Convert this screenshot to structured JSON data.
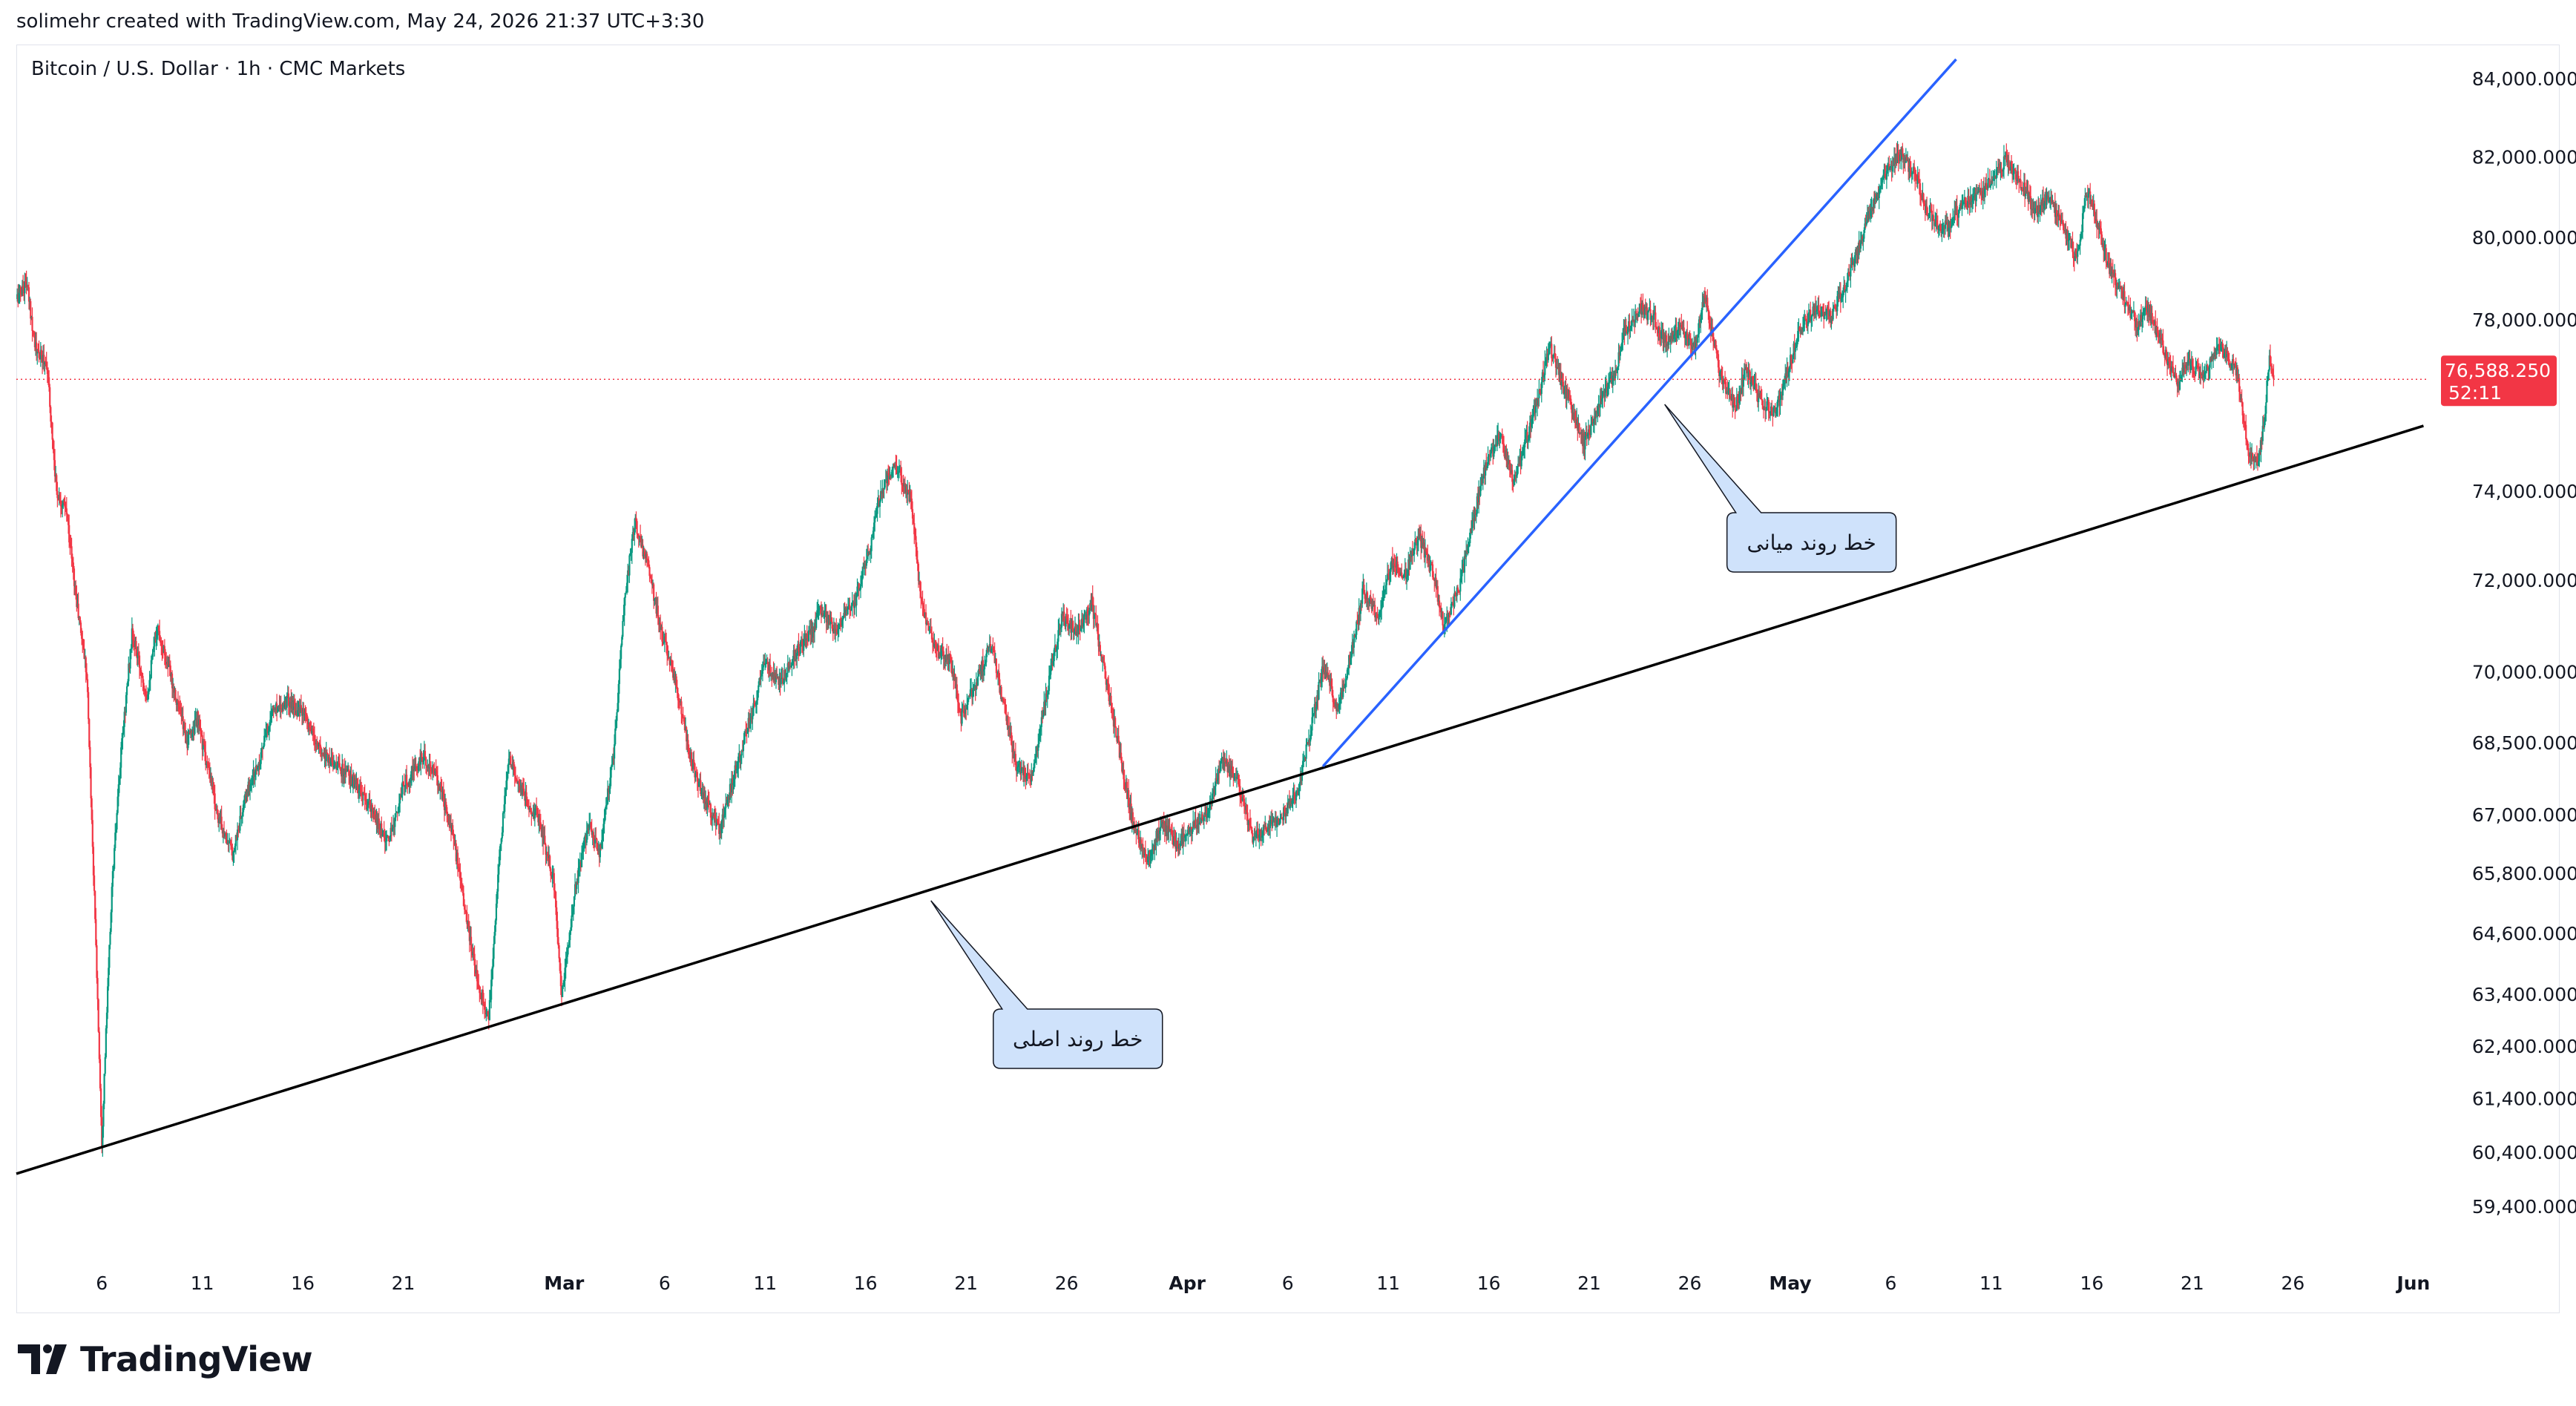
{
  "header": {
    "text": "solimehr created with TradingView.com, May 24, 2026 21:37 UTC+3:30"
  },
  "symbol": {
    "title": "Bitcoin / U.S. Dollar · 1h · CMC Markets"
  },
  "footer": {
    "logo_text": "TradingView"
  },
  "colors": {
    "up": "#089981",
    "down": "#f23645",
    "main_trend": "#000000",
    "mid_trend": "#2962ff",
    "callout_fill": "#cfe2fb",
    "price_tag": "#f23645"
  },
  "chart_data": {
    "type": "candlestick",
    "title": "Bitcoin / U.S. Dollar · 1h · CMC Markets",
    "xlabel": "",
    "ylabel": "",
    "price_scale": "log",
    "y_ticks": [
      84000,
      82000,
      80000,
      78000,
      74000,
      72000,
      70000,
      68500,
      67000,
      65800,
      64600,
      63400,
      62400,
      61400,
      60400,
      59400
    ],
    "y_tick_labels": [
      "84,000.000",
      "82,000.000",
      "80,000.000",
      "78,000.000",
      "74,000.000",
      "72,000.000",
      "70,000.000",
      "68,500.000",
      "67,000.000",
      "65,800.000",
      "64,600.000",
      "63,400.000",
      "62,400.000",
      "61,400.000",
      "60,400.000",
      "59,400.000"
    ],
    "x_range": [
      "2026-02-01T18:00",
      "2026-06-02T00:00"
    ],
    "x_ticks": [
      {
        "label": "6",
        "date": "2026-02-06",
        "bold": false
      },
      {
        "label": "11",
        "date": "2026-02-11",
        "bold": false
      },
      {
        "label": "16",
        "date": "2026-02-16",
        "bold": false
      },
      {
        "label": "21",
        "date": "2026-02-21",
        "bold": false
      },
      {
        "label": "Mar",
        "date": "2026-03-01",
        "bold": true
      },
      {
        "label": "6",
        "date": "2026-03-06",
        "bold": false
      },
      {
        "label": "11",
        "date": "2026-03-11",
        "bold": false
      },
      {
        "label": "16",
        "date": "2026-03-16",
        "bold": false
      },
      {
        "label": "21",
        "date": "2026-03-21",
        "bold": false
      },
      {
        "label": "26",
        "date": "2026-03-26",
        "bold": false
      },
      {
        "label": "Apr",
        "date": "2026-04-01",
        "bold": true
      },
      {
        "label": "6",
        "date": "2026-04-06",
        "bold": false
      },
      {
        "label": "11",
        "date": "2026-04-11",
        "bold": false
      },
      {
        "label": "16",
        "date": "2026-04-16",
        "bold": false
      },
      {
        "label": "21",
        "date": "2026-04-21",
        "bold": false
      },
      {
        "label": "26",
        "date": "2026-04-26",
        "bold": false
      },
      {
        "label": "May",
        "date": "2026-05-01",
        "bold": true
      },
      {
        "label": "6",
        "date": "2026-05-06",
        "bold": false
      },
      {
        "label": "11",
        "date": "2026-05-11",
        "bold": false
      },
      {
        "label": "16",
        "date": "2026-05-16",
        "bold": false
      },
      {
        "label": "21",
        "date": "2026-05-21",
        "bold": false
      },
      {
        "label": "26",
        "date": "2026-05-26",
        "bold": false
      },
      {
        "label": "Jun",
        "date": "2026-06-01",
        "bold": true
      }
    ],
    "price_path": [
      [
        "2026-02-01T18:00",
        78500
      ],
      [
        "2026-02-02T06:00",
        78900
      ],
      [
        "2026-02-02T18:00",
        77200
      ],
      [
        "2026-02-03T06:00",
        77000
      ],
      [
        "2026-02-03T18:00",
        74000
      ],
      [
        "2026-02-04T06:00",
        73500
      ],
      [
        "2026-02-04T18:00",
        71500
      ],
      [
        "2026-02-05T06:00",
        70000
      ],
      [
        "2026-02-05T18:00",
        63800
      ],
      [
        "2026-02-06T00:00",
        60600
      ],
      [
        "2026-02-06T12:00",
        65500
      ],
      [
        "2026-02-07T00:00",
        68500
      ],
      [
        "2026-02-07T12:00",
        70800
      ],
      [
        "2026-02-08T06:00",
        69500
      ],
      [
        "2026-02-08T18:00",
        71000
      ],
      [
        "2026-02-09T12:00",
        69800
      ],
      [
        "2026-02-10T06:00",
        68500
      ],
      [
        "2026-02-10T18:00",
        69000
      ],
      [
        "2026-02-11T18:00",
        67000
      ],
      [
        "2026-02-12T12:00",
        66200
      ],
      [
        "2026-02-13T06:00",
        67500
      ],
      [
        "2026-02-13T18:00",
        68000
      ],
      [
        "2026-02-14T12:00",
        69200
      ],
      [
        "2026-02-15T06:00",
        69400
      ],
      [
        "2026-02-16T00:00",
        69100
      ],
      [
        "2026-02-16T18:00",
        68400
      ],
      [
        "2026-02-17T12:00",
        68100
      ],
      [
        "2026-02-18T12:00",
        67700
      ],
      [
        "2026-02-19T12:00",
        67000
      ],
      [
        "2026-02-20T06:00",
        66400
      ],
      [
        "2026-02-21T00:00",
        67600
      ],
      [
        "2026-02-22T00:00",
        68200
      ],
      [
        "2026-02-22T18:00",
        67700
      ],
      [
        "2026-02-23T12:00",
        66500
      ],
      [
        "2026-02-24T06:00",
        64600
      ],
      [
        "2026-02-24T18:00",
        63600
      ],
      [
        "2026-02-25T06:00",
        62900
      ],
      [
        "2026-02-25T18:00",
        66000
      ],
      [
        "2026-02-26T06:00",
        68200
      ],
      [
        "2026-02-27T00:00",
        67400
      ],
      [
        "2026-02-27T18:00",
        66900
      ],
      [
        "2026-02-28T12:00",
        65600
      ],
      [
        "2026-02-28T21:00",
        63300
      ],
      [
        "2026-03-01T12:00",
        65400
      ],
      [
        "2026-03-02T06:00",
        66900
      ],
      [
        "2026-03-02T18:00",
        66200
      ],
      [
        "2026-03-03T12:00",
        68400
      ],
      [
        "2026-03-04T00:00",
        71500
      ],
      [
        "2026-03-04T12:00",
        73300
      ],
      [
        "2026-03-05T06:00",
        72200
      ],
      [
        "2026-03-05T18:00",
        71000
      ],
      [
        "2026-03-06T12:00",
        69900
      ],
      [
        "2026-03-07T06:00",
        68200
      ],
      [
        "2026-03-08T00:00",
        67300
      ],
      [
        "2026-03-08T18:00",
        66700
      ],
      [
        "2026-03-09T12:00",
        67900
      ],
      [
        "2026-03-10T06:00",
        69000
      ],
      [
        "2026-03-11T00:00",
        70200
      ],
      [
        "2026-03-11T18:00",
        69700
      ],
      [
        "2026-03-12T12:00",
        70400
      ],
      [
        "2026-03-13T06:00",
        70800
      ],
      [
        "2026-03-13T18:00",
        71400
      ],
      [
        "2026-03-14T12:00",
        70900
      ],
      [
        "2026-03-15T12:00",
        71600
      ],
      [
        "2026-03-16T06:00",
        72800
      ],
      [
        "2026-03-16T18:00",
        74000
      ],
      [
        "2026-03-17T12:00",
        74600
      ],
      [
        "2026-03-18T06:00",
        73800
      ],
      [
        "2026-03-18T18:00",
        71500
      ],
      [
        "2026-03-19T12:00",
        70500
      ],
      [
        "2026-03-20T06:00",
        70200
      ],
      [
        "2026-03-20T18:00",
        69000
      ],
      [
        "2026-03-21T12:00",
        69800
      ],
      [
        "2026-03-22T06:00",
        70600
      ],
      [
        "2026-03-22T18:00",
        69500
      ],
      [
        "2026-03-23T12:00",
        68000
      ],
      [
        "2026-03-24T06:00",
        67800
      ],
      [
        "2026-03-25T00:00",
        69500
      ],
      [
        "2026-03-25T18:00",
        71200
      ],
      [
        "2026-03-26T12:00",
        70800
      ],
      [
        "2026-03-27T06:00",
        71500
      ],
      [
        "2026-03-27T18:00",
        70300
      ],
      [
        "2026-03-28T12:00",
        68600
      ],
      [
        "2026-03-29T06:00",
        66900
      ],
      [
        "2026-03-30T00:00",
        66100
      ],
      [
        "2026-03-30T18:00",
        66800
      ],
      [
        "2026-03-31T12:00",
        66400
      ],
      [
        "2026-04-01T06:00",
        66700
      ],
      [
        "2026-04-02T00:00",
        67100
      ],
      [
        "2026-04-02T18:00",
        68100
      ],
      [
        "2026-04-03T12:00",
        67700
      ],
      [
        "2026-04-04T06:00",
        66500
      ],
      [
        "2026-04-05T00:00",
        66800
      ],
      [
        "2026-04-05T18:00",
        67000
      ],
      [
        "2026-04-06T12:00",
        67500
      ],
      [
        "2026-04-07T06:00",
        69000
      ],
      [
        "2026-04-07T18:00",
        70100
      ],
      [
        "2026-04-08T12:00",
        69200
      ],
      [
        "2026-04-09T06:00",
        70600
      ],
      [
        "2026-04-09T18:00",
        71800
      ],
      [
        "2026-04-10T12:00",
        71200
      ],
      [
        "2026-04-11T06:00",
        72500
      ],
      [
        "2026-04-11T18:00",
        72000
      ],
      [
        "2026-04-12T12:00",
        73000
      ],
      [
        "2026-04-13T06:00",
        72100
      ],
      [
        "2026-04-13T18:00",
        71000
      ],
      [
        "2026-04-14T12:00",
        71800
      ],
      [
        "2026-04-15T06:00",
        73400
      ],
      [
        "2026-04-15T18:00",
        74400
      ],
      [
        "2026-04-16T12:00",
        75300
      ],
      [
        "2026-04-17T06:00",
        74200
      ],
      [
        "2026-04-17T18:00",
        75000
      ],
      [
        "2026-04-18T12:00",
        76200
      ],
      [
        "2026-04-19T00:00",
        77400
      ],
      [
        "2026-04-19T12:00",
        76700
      ],
      [
        "2026-04-20T06:00",
        75700
      ],
      [
        "2026-04-20T18:00",
        75100
      ],
      [
        "2026-04-21T12:00",
        76000
      ],
      [
        "2026-04-22T06:00",
        76700
      ],
      [
        "2026-04-22T18:00",
        77700
      ],
      [
        "2026-04-23T12:00",
        78300
      ],
      [
        "2026-04-24T06:00",
        78000
      ],
      [
        "2026-04-24T18:00",
        77500
      ],
      [
        "2026-04-25T12:00",
        77800
      ],
      [
        "2026-04-26T06:00",
        77300
      ],
      [
        "2026-04-26T18:00",
        78600
      ],
      [
        "2026-04-27T12:00",
        76700
      ],
      [
        "2026-04-28T06:00",
        75900
      ],
      [
        "2026-04-28T18:00",
        76800
      ],
      [
        "2026-04-29T12:00",
        76100
      ],
      [
        "2026-04-30T06:00",
        75800
      ],
      [
        "2026-04-30T18:00",
        76600
      ],
      [
        "2026-05-01T12:00",
        77800
      ],
      [
        "2026-05-02T06:00",
        78300
      ],
      [
        "2026-05-03T00:00",
        78100
      ],
      [
        "2026-05-03T18:00",
        78800
      ],
      [
        "2026-05-04T12:00",
        79900
      ],
      [
        "2026-05-05T06:00",
        81000
      ],
      [
        "2026-05-05T18:00",
        81600
      ],
      [
        "2026-05-06T12:00",
        82100
      ],
      [
        "2026-05-07T06:00",
        81500
      ],
      [
        "2026-05-07T18:00",
        80700
      ],
      [
        "2026-05-08T12:00",
        80100
      ],
      [
        "2026-05-09T06:00",
        80600
      ],
      [
        "2026-05-09T18:00",
        80900
      ],
      [
        "2026-05-10T12:00",
        81100
      ],
      [
        "2026-05-11T06:00",
        81600
      ],
      [
        "2026-05-11T18:00",
        82000
      ],
      [
        "2026-05-12T12:00",
        81300
      ],
      [
        "2026-05-13T06:00",
        80600
      ],
      [
        "2026-05-13T18:00",
        81000
      ],
      [
        "2026-05-14T12:00",
        80400
      ],
      [
        "2026-05-15T06:00",
        79400
      ],
      [
        "2026-05-15T18:00",
        81200
      ],
      [
        "2026-05-16T06:00",
        80400
      ],
      [
        "2026-05-16T18:00",
        79400
      ],
      [
        "2026-05-17T12:00",
        78600
      ],
      [
        "2026-05-18T06:00",
        77900
      ],
      [
        "2026-05-18T18:00",
        78300
      ],
      [
        "2026-05-19T12:00",
        77400
      ],
      [
        "2026-05-20T06:00",
        76400
      ],
      [
        "2026-05-20T18:00",
        77000
      ],
      [
        "2026-05-21T12:00",
        76600
      ],
      [
        "2026-05-22T06:00",
        77400
      ],
      [
        "2026-05-22T18:00",
        77100
      ],
      [
        "2026-05-23T06:00",
        76700
      ],
      [
        "2026-05-23T18:00",
        75000
      ],
      [
        "2026-05-24T06:00",
        74600
      ],
      [
        "2026-05-24T14:00",
        75700
      ],
      [
        "2026-05-24T20:00",
        77100
      ],
      [
        "2026-05-25T00:00",
        76588
      ]
    ],
    "last_price": {
      "value": 76588.25,
      "label": "76,588.250",
      "countdown": "52:11"
    },
    "annotations": [
      {
        "type": "trendline",
        "name": "main-trend",
        "color": "#000000",
        "start": {
          "date": "2026-02-01T18:00",
          "price": 60000
        },
        "end": {
          "date": "2026-06-01T12:00",
          "price": 75500
        },
        "callout": {
          "text": "خط روند اصلی",
          "anchor": {
            "date": "2026-03-19T06:00",
            "price": 65250
          }
        }
      },
      {
        "type": "trendline",
        "name": "mid-trend",
        "color": "#2962ff",
        "start": {
          "date": "2026-04-07T18:00",
          "price": 68000
        },
        "end": {
          "date": "2026-05-09T06:00",
          "price": 84500
        },
        "callout": {
          "text": "خط روند میانی",
          "anchor": {
            "date": "2026-04-24T18:00",
            "price": 76000
          }
        }
      }
    ]
  }
}
